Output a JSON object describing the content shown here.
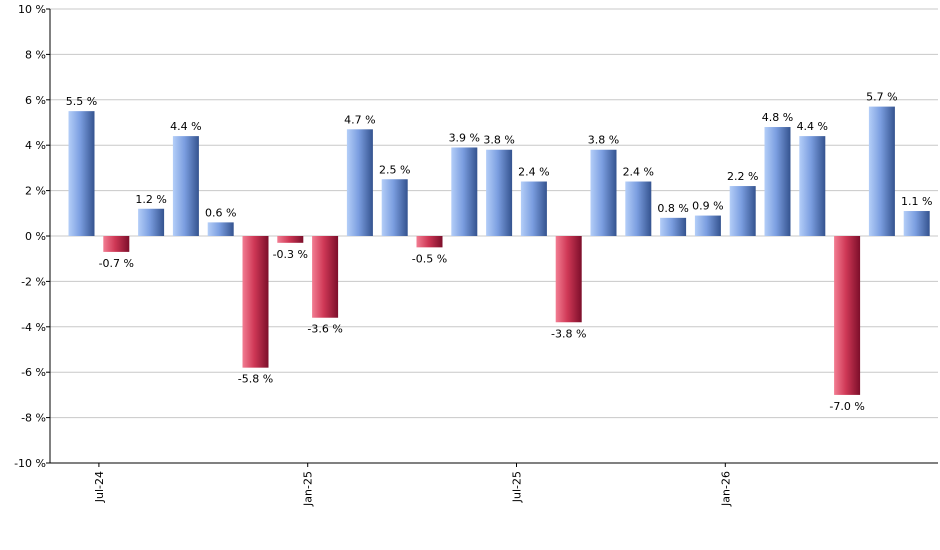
{
  "chart_data": {
    "type": "bar",
    "values": [
      5.5,
      -0.7,
      1.2,
      4.4,
      0.6,
      -5.8,
      -0.3,
      -3.6,
      4.7,
      2.5,
      -0.5,
      3.9,
      3.8,
      2.4,
      -3.8,
      3.8,
      2.4,
      0.8,
      0.9,
      2.2,
      4.8,
      4.4,
      -7.0,
      5.7,
      1.1
    ],
    "value_labels": [
      "5.5 %",
      "-0.7 %",
      "1.2 %",
      "4.4 %",
      "0.6 %",
      "-5.8 %",
      "-0.3 %",
      "-3.6 %",
      "4.7 %",
      "2.5 %",
      "-0.5 %",
      "3.9 %",
      "3.8 %",
      "2.4 %",
      "-3.8 %",
      "3.8 %",
      "2.4 %",
      "0.8 %",
      "0.9 %",
      "2.2 %",
      "4.8 %",
      "4.4 %",
      "-7.0 %",
      "5.7 %",
      "1.1 %"
    ],
    "x_tick_labels": [
      {
        "label": "Jul-24",
        "bar_index": 1
      },
      {
        "label": "Jan-25",
        "bar_index": 7
      },
      {
        "label": "Jul-25",
        "bar_index": 13
      },
      {
        "label": "Jan-26",
        "bar_index": 19
      }
    ],
    "y_ticks": [
      10,
      8,
      6,
      4,
      2,
      0,
      -2,
      -4,
      -6,
      -8,
      -10
    ],
    "y_tick_labels": [
      "10 %",
      "8 %",
      "6 %",
      "4 %",
      "2 %",
      "0 %",
      "-2 %",
      "-4 %",
      "-6 %",
      "-8 %",
      "-10 %"
    ],
    "ylim": [
      -10,
      10
    ],
    "grid": true,
    "title": "",
    "xlabel": "",
    "ylabel": "",
    "colors": {
      "positive_light": "#a8c4f4",
      "positive_dark": "#3a5898",
      "negative_light": "#e8607a",
      "negative_dark": "#8a1030",
      "grid": "#c8c8c8"
    }
  }
}
